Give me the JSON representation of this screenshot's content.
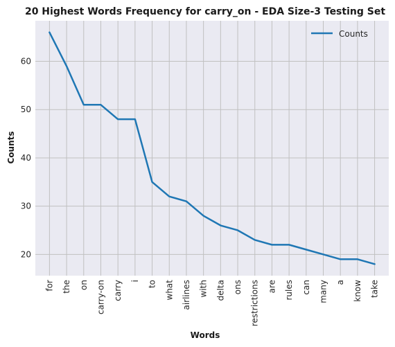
{
  "chart_data": {
    "type": "line",
    "title": "20 Highest Words Frequency for carry_on - EDA Size-3 Testing Set",
    "xlabel": "Words",
    "ylabel": "Counts",
    "categories": [
      "for",
      "the",
      "on",
      "carry-on",
      "carry",
      "i",
      "to",
      "what",
      "airlines",
      "with",
      "delta",
      "ons",
      "restrictions",
      "are",
      "rules",
      "can",
      "many",
      "a",
      "know",
      "take"
    ],
    "series": [
      {
        "name": "Counts",
        "color": "#1f77b4",
        "values": [
          66,
          59,
          51,
          51,
          48,
          48,
          35,
          32,
          31,
          28,
          26,
          25,
          23,
          22,
          22,
          21,
          20,
          19,
          19,
          18
        ]
      }
    ],
    "yticks": [
      20,
      30,
      40,
      50,
      60
    ],
    "ylim": [
      15.6,
      68.4
    ],
    "grid": true,
    "legend_position": "top-right",
    "background_color": "#eaeaf2",
    "grid_color": "#c0c0c0"
  }
}
